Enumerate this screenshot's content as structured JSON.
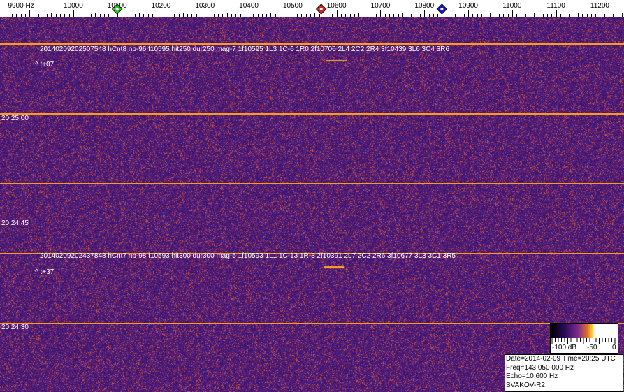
{
  "chart_data": {
    "type": "heatmap",
    "xlabel": "Hz",
    "x_tick_labels": [
      "9900 Hz",
      "10000",
      "10100",
      "10200",
      "10300",
      "10400",
      "10500",
      "10600",
      "10700",
      "10800",
      "10900",
      "11000",
      "11100",
      "11200"
    ],
    "x_ticks": [
      9900,
      10000,
      10100,
      10200,
      10300,
      10400,
      10500,
      10600,
      10700,
      10800,
      10900,
      11000,
      11100,
      11200
    ],
    "xlim": [
      9833,
      11255
    ],
    "markers": [
      {
        "freq": 10100,
        "color": "#22cc22"
      },
      {
        "freq": 10565,
        "color": "#cc2222"
      },
      {
        "freq": 10840,
        "color": "#1a1acc"
      }
    ],
    "time_labels": [
      "20:25:00",
      "20:24:45",
      "20:24:30"
    ],
    "detections": [
      {
        "text": "20140209202507548 hCnt8 nb-96 f10595 hit250 dur250 mag-7 1f10595 1L3 1C-6 1R0 2f10706 2L4 2C2 2R4 3f10439 3L6 3C4 3R6",
        "offset": "^ t+07",
        "freq": 10595
      },
      {
        "text": "20140209202437848 hCnt7 nb-98 f10593 hit300 dur300 mag-5 1f10593 1L1 1C-13 1R-3 2f10391 2L7 2C2 2R6 3f10677 3L3 3C1 3R5",
        "offset": "^ t+37",
        "freq": 10593
      }
    ],
    "colorbar": {
      "labels": [
        "-100 dB",
        "-50",
        "0"
      ],
      "range": [
        -100,
        0
      ]
    }
  },
  "info": {
    "line1": "Date=2014-02-09 Time=20:25 UTC",
    "line2": "Freq=143 050 000 Hz",
    "line3": "Echo=10 600 Hz",
    "line4": "SVAKOV-R2"
  },
  "colors": {
    "background": "#4a1a6e",
    "line": "#ff9a1a"
  }
}
